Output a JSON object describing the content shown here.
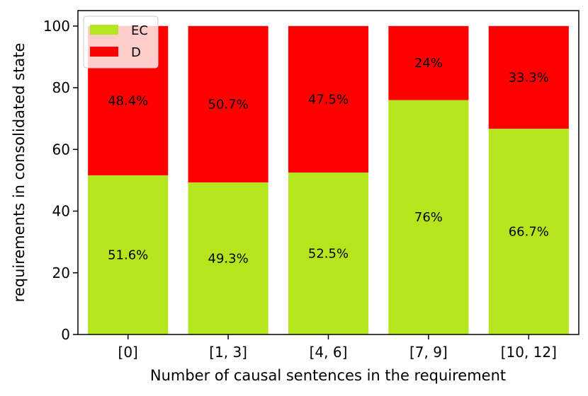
{
  "chart_data": {
    "type": "bar",
    "stacked": true,
    "xlabel": "Number of causal sentences in the requirement",
    "ylabel": "requirements in consolidated state",
    "ylim": [
      0,
      105
    ],
    "yticks": [
      0,
      20,
      40,
      60,
      80,
      100
    ],
    "categories": [
      "[0]",
      "[1, 3]",
      "[4, 6]",
      "[7, 9]",
      "[10, 12]"
    ],
    "series": [
      {
        "name": "EC",
        "color": "#b5e61d",
        "values": [
          51.6,
          49.3,
          52.5,
          76,
          66.7
        ],
        "labels": [
          "51.6%",
          "49.3%",
          "52.5%",
          "76%",
          "66.7%"
        ]
      },
      {
        "name": "D",
        "color": "#ff0000",
        "values": [
          48.4,
          50.7,
          47.5,
          24,
          33.3
        ],
        "labels": [
          "48.4%",
          "50.7%",
          "47.5%",
          "24%",
          "33.3%"
        ]
      }
    ],
    "legend_position": "top-left",
    "grid": false
  }
}
